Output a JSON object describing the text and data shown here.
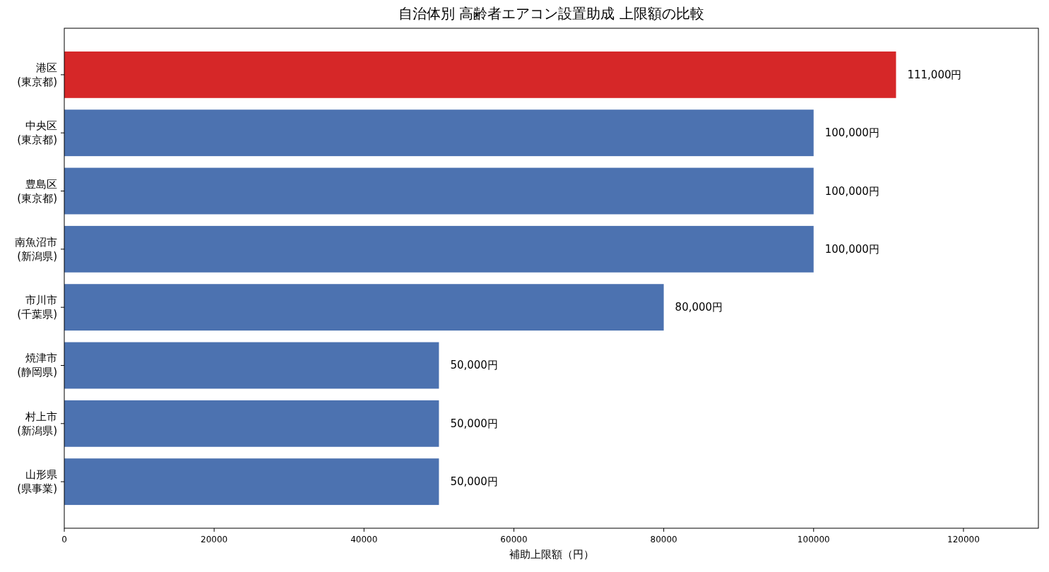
{
  "chart_data": {
    "type": "bar",
    "orientation": "horizontal",
    "title": "自治体別 高齢者エアコン設置助成 上限額の比較",
    "xlabel": "補助上限額（円）",
    "categories": [
      "港区\n(東京都)",
      "中央区\n(東京都)",
      "豊島区\n(東京都)",
      "南魚沼市\n(新潟県)",
      "市川市\n(千葉県)",
      "焼津市\n(静岡県)",
      "村上市\n(新潟県)",
      "山形県\n(県事業)"
    ],
    "values": [
      111000,
      100000,
      100000,
      100000,
      80000,
      50000,
      50000,
      50000
    ],
    "colors": [
      "#d62728",
      "#4c72b0",
      "#4c72b0",
      "#4c72b0",
      "#4c72b0",
      "#4c72b0",
      "#4c72b0",
      "#4c72b0"
    ],
    "value_labels": [
      "111,000円",
      "100,000円",
      "100,000円",
      "100,000円",
      "80,000円",
      "50,000円",
      "50,000円",
      "50,000円"
    ],
    "xlim": [
      0,
      130000
    ],
    "xticks": [
      0,
      20000,
      40000,
      60000,
      80000,
      100000,
      120000
    ]
  }
}
